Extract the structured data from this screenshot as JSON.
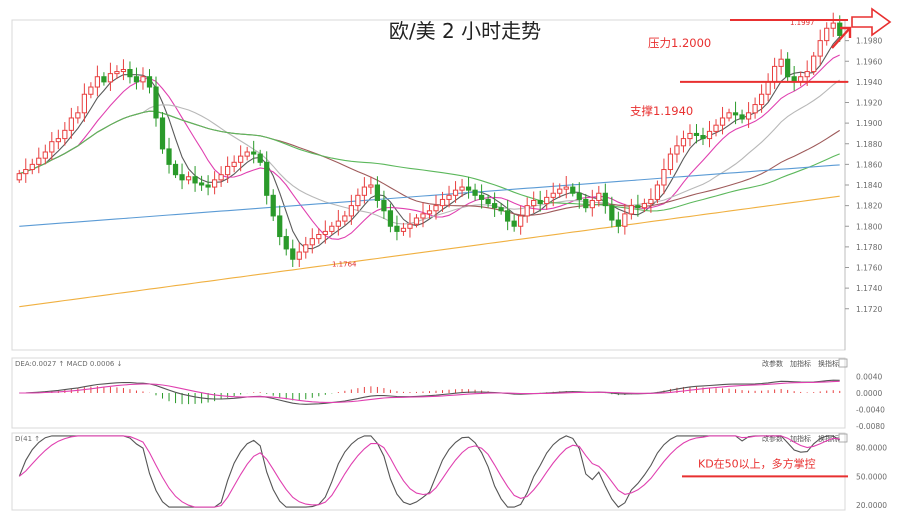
{
  "chart_data": {
    "type": "candlestick",
    "title": "欧/美 2 小时走势",
    "main": {
      "ylim": [
        1.168,
        1.2
      ],
      "y_ticks": [
        1.172,
        1.174,
        1.176,
        1.178,
        1.18,
        1.182,
        1.184,
        1.186,
        1.188,
        1.19,
        1.192,
        1.194,
        1.196,
        1.198
      ],
      "y_tick_labels": [
        "1.1720",
        "1.1740",
        "1.1760",
        "1.1780",
        "1.1800",
        "1.1820",
        "1.1840",
        "1.1860",
        "1.1880",
        "1.1900",
        "1.1920",
        "1.1940",
        "1.1960",
        "1.1980"
      ],
      "closes": [
        1.1851,
        1.1855,
        1.186,
        1.1866,
        1.1872,
        1.1882,
        1.1885,
        1.1893,
        1.1905,
        1.191,
        1.1928,
        1.1935,
        1.1945,
        1.194,
        1.1948,
        1.195,
        1.1952,
        1.1945,
        1.194,
        1.1945,
        1.1935,
        1.1905,
        1.1875,
        1.186,
        1.185,
        1.1845,
        1.1848,
        1.1842,
        1.184,
        1.1838,
        1.1845,
        1.185,
        1.1858,
        1.1862,
        1.1868,
        1.1872,
        1.187,
        1.1862,
        1.183,
        1.181,
        1.179,
        1.1778,
        1.1768,
        1.1775,
        1.1782,
        1.1788,
        1.1792,
        1.1795,
        1.18,
        1.1805,
        1.181,
        1.182,
        1.183,
        1.1838,
        1.184,
        1.1825,
        1.1815,
        1.18,
        1.1795,
        1.1798,
        1.1802,
        1.1808,
        1.1812,
        1.1815,
        1.182,
        1.1826,
        1.183,
        1.1835,
        1.1838,
        1.1835,
        1.183,
        1.1826,
        1.1822,
        1.1818,
        1.1815,
        1.1805,
        1.18,
        1.181,
        1.182,
        1.1825,
        1.1822,
        1.1828,
        1.1832,
        1.1836,
        1.1838,
        1.1832,
        1.1826,
        1.1818,
        1.1825,
        1.1832,
        1.182,
        1.1806,
        1.18,
        1.1812,
        1.182,
        1.1818,
        1.1822,
        1.1826,
        1.184,
        1.1855,
        1.187,
        1.1878,
        1.1885,
        1.189,
        1.1888,
        1.1885,
        1.1892,
        1.1898,
        1.1905,
        1.191,
        1.1908,
        1.1904,
        1.191,
        1.1918,
        1.1928,
        1.194,
        1.1955,
        1.1962,
        1.1945,
        1.194,
        1.1945,
        1.195,
        1.1965,
        1.198,
        1.1992,
        1.1997,
        1.1985
      ],
      "ohlc_note": "bodies and wicks are read from the closes",
      "moving_averages": [
        {
          "period": 5,
          "color": "#5a5a5a"
        },
        {
          "period": 10,
          "color": "#e040b0"
        },
        {
          "period": 20,
          "color": "#b8b8b8"
        },
        {
          "period": 40,
          "color": "#9e5a5a"
        },
        {
          "period": 60,
          "color": "#5cb85c"
        },
        {
          "period": 120,
          "color": "#5b9bd5"
        },
        {
          "period": 200,
          "color": "#f0b040"
        }
      ],
      "annotations": {
        "resistance_label": "压力1.2000",
        "resistance_level": 1.2,
        "support_label": "支撑1.1940",
        "support_level": 1.194,
        "high_label": "1.1997",
        "low_label": "1.1764"
      }
    },
    "macd": {
      "label": "DEA:0.0027 ↑ MACD 0.0006 ↓",
      "ylim": [
        -0.0085,
        0.0085
      ],
      "y_ticks": [
        0.004,
        0.0,
        -0.004,
        -0.008
      ],
      "y_tick_labels": [
        "0.0040",
        "0.0000",
        "-0.0040",
        "-0.0080"
      ]
    },
    "kd": {
      "label": "D(41 ↑",
      "ylim": [
        15,
        95
      ],
      "y_ticks": [
        80,
        50,
        20
      ],
      "y_tick_labels": [
        "80.0000",
        "50.0000",
        "20.0000"
      ],
      "annotation": "KD在50以上，多方掌控",
      "level": 50
    },
    "pane_buttons": [
      "改参数",
      "加指标",
      "换指标"
    ],
    "colors": {
      "up": "#e84040",
      "down": "#2a9a2a",
      "annotation": "#e83030",
      "macd_diff": "#555555",
      "macd_dea": "#e040b0",
      "k_line": "#555555",
      "d_line": "#e040b0"
    }
  }
}
